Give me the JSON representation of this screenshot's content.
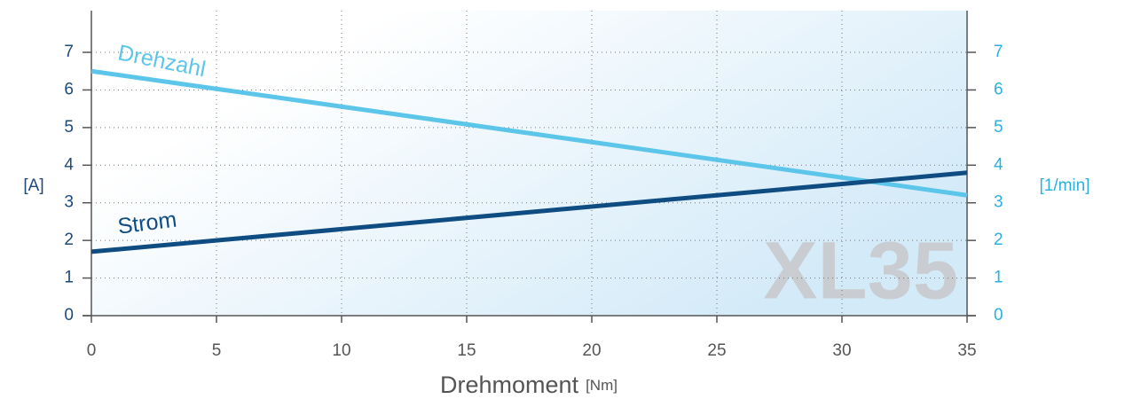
{
  "chart_data": {
    "type": "line",
    "x": [
      0,
      35
    ],
    "series": [
      {
        "name": "Drehzahl",
        "color": "#5bc5ea",
        "values": [
          6.5,
          3.2
        ],
        "axis": "y2"
      },
      {
        "name": "Strom",
        "color": "#0f4c81",
        "values": [
          1.7,
          3.8
        ]
      }
    ],
    "xlim": [
      0,
      35
    ],
    "xticks": [
      0,
      5,
      10,
      15,
      20,
      25,
      30,
      35
    ],
    "ylim": [
      0,
      8
    ],
    "yticks": [
      0,
      1,
      2,
      3,
      4,
      5,
      6,
      7
    ],
    "y2lim": [
      0,
      8
    ],
    "y2ticks": [
      0,
      1,
      2,
      3,
      4,
      5,
      6,
      7
    ],
    "y_label": "[A]",
    "y2_label": "[1/min]",
    "x_label": "Drehmoment",
    "x_unit": "[Nm]",
    "watermark": "XL35",
    "grid": true
  }
}
